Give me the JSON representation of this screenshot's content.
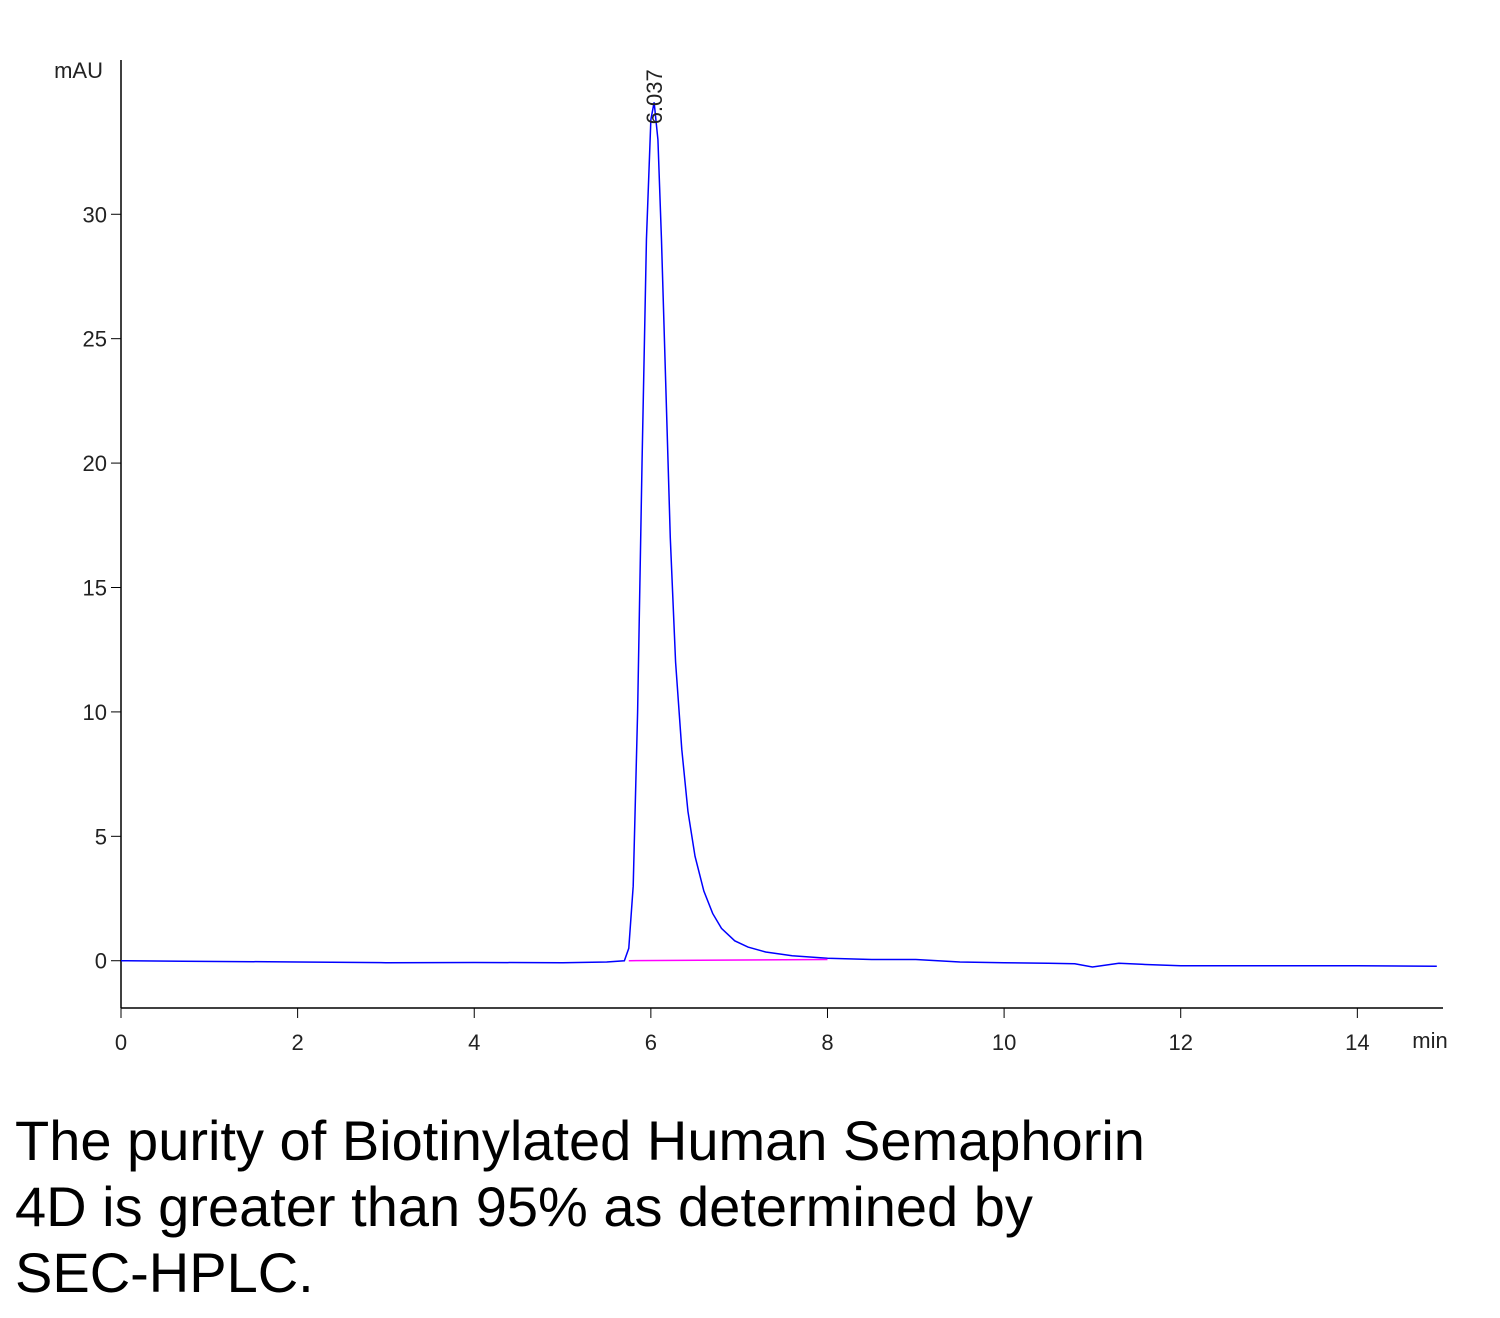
{
  "chart_data": {
    "type": "line",
    "y_label": "mAU",
    "x_label": "min",
    "xlim": [
      0,
      14.97
    ],
    "xticks": [
      0,
      2,
      4,
      6,
      8,
      10,
      12,
      14
    ],
    "ylim": [
      -1.9,
      36.2
    ],
    "yticks": [
      0,
      5,
      10,
      15,
      20,
      25,
      30
    ],
    "series": [
      {
        "color": "#0000ff",
        "x": [
          0,
          0.7,
          2,
          3,
          4,
          5,
          5.5,
          5.7,
          5.75,
          5.8,
          5.85,
          5.9,
          5.95,
          6.0,
          6.037,
          6.08,
          6.12,
          6.17,
          6.22,
          6.28,
          6.35,
          6.42,
          6.5,
          6.6,
          6.7,
          6.8,
          6.95,
          7.1,
          7.3,
          7.6,
          8.0,
          8.5,
          9.0,
          9.5,
          10,
          10.5,
          10.8,
          11.0,
          11.1,
          11.3,
          11.6,
          12,
          13,
          14,
          14.9
        ],
        "values": [
          0,
          -0.02,
          -0.05,
          -0.08,
          -0.07,
          -0.08,
          -0.05,
          0.0,
          0.5,
          3,
          10,
          20,
          29,
          33.8,
          34.5,
          33,
          29,
          23,
          17,
          12,
          8.5,
          6,
          4.2,
          2.8,
          1.9,
          1.3,
          0.8,
          0.55,
          0.35,
          0.2,
          0.1,
          0.05,
          0.05,
          -0.05,
          -0.08,
          -0.1,
          -0.12,
          -0.25,
          -0.2,
          -0.1,
          -0.15,
          -0.2,
          -0.2,
          -0.2,
          -0.22
        ]
      },
      {
        "color": "#ff00ff",
        "x": [
          5.75,
          8.0
        ],
        "values": [
          0,
          0.05
        ]
      }
    ],
    "annotations": [
      {
        "text": "6.037"
      }
    ]
  },
  "caption": [
    "The purity of Biotinylated Human Semaphorin",
    "4D is greater than 95% as determined by",
    "SEC-HPLC."
  ]
}
